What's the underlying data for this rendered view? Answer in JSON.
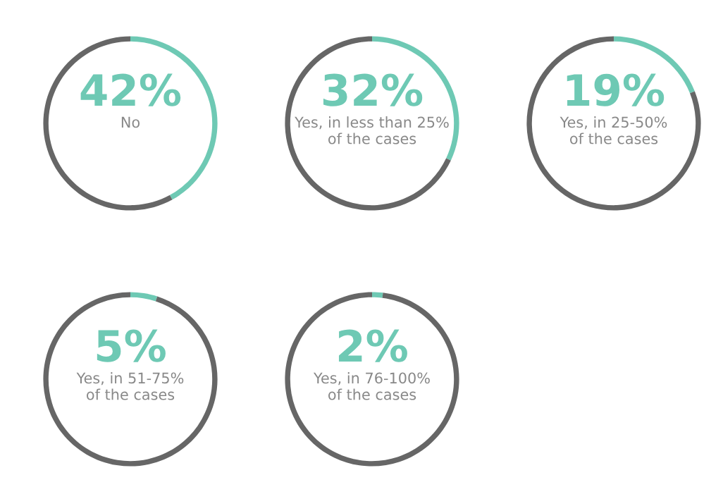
{
  "chart_data": [
    {
      "type": "donut",
      "categories": [
        "No",
        null
      ],
      "values": [
        42,
        58
      ],
      "colors": [
        "#6ec9b4",
        "#666666"
      ],
      "value_labels": [
        "42%",
        null
      ]
    },
    {
      "type": "donut",
      "categories": [
        "Yes, in less than 25%\nof the cases",
        null
      ],
      "values": [
        32,
        68
      ],
      "colors": [
        "#6ec9b4",
        "#666666"
      ],
      "value_labels": [
        "32%",
        null
      ]
    },
    {
      "type": "donut",
      "categories": [
        "Yes, in 25-50%\nof the cases",
        null
      ],
      "values": [
        19,
        81
      ],
      "colors": [
        "#6ec9b4",
        "#666666"
      ],
      "value_labels": [
        "19%",
        null
      ]
    },
    {
      "type": "donut",
      "categories": [
        "Yes, in 51-75%\nof the cases",
        null
      ],
      "values": [
        5,
        95
      ],
      "colors": [
        "#6ec9b4",
        "#666666"
      ],
      "value_labels": [
        "5%",
        null
      ]
    },
    {
      "type": "donut",
      "categories": [
        "Yes, in 76-100%\nof the cases",
        null
      ],
      "values": [
        2,
        98
      ],
      "colors": [
        "#6ec9b4",
        "#666666"
      ],
      "value_labels": [
        "2%",
        null
      ]
    }
  ]
}
